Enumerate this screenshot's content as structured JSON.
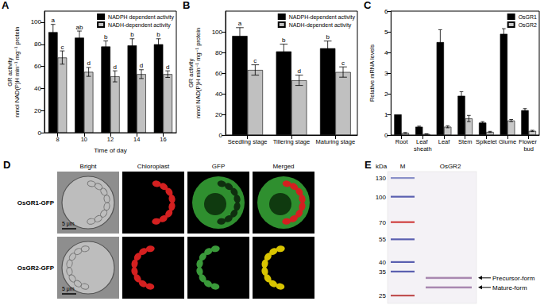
{
  "chart_data": [
    {
      "type": "bar",
      "title": "A",
      "xlabel": "Time of day",
      "ylabel": "GR activity\nnmol NAD(P)H min⁻¹ mg⁻¹ protein",
      "categories": [
        "8",
        "10",
        "12",
        "14",
        "16"
      ],
      "series": [
        {
          "name": "NADPH dependent activity",
          "color": "#000000",
          "values": [
            91,
            86,
            78,
            79,
            80
          ],
          "errors": [
            7,
            6,
            5,
            6,
            5
          ],
          "letters": [
            "a",
            "ab",
            "b",
            "b",
            "b"
          ]
        },
        {
          "name": "NADH-dependent activity",
          "color": "#c0c0c0",
          "values": [
            68,
            55,
            51,
            53,
            53
          ],
          "errors": [
            6,
            4,
            5,
            4,
            3
          ],
          "letters": [
            "c",
            "d",
            "d",
            "d",
            "d"
          ]
        }
      ],
      "ylim": [
        0,
        110
      ],
      "yticks": [
        0,
        20,
        40,
        60,
        80,
        100
      ],
      "grid": false,
      "legend": "upper right"
    },
    {
      "type": "bar",
      "title": "B",
      "ylabel": "GR activity\nnmol NAD(P)H min⁻¹ mg⁻¹ protein",
      "categories": [
        "Seedling stage",
        "Tillering stage",
        "Maturing stage"
      ],
      "series": [
        {
          "name": "NADPH-dependent activity",
          "color": "#000000",
          "values": [
            96,
            81,
            84
          ],
          "errors": [
            8,
            7,
            7
          ],
          "letters": [
            "a",
            "b",
            "b"
          ]
        },
        {
          "name": "NADH-dependent activity",
          "color": "#c0c0c0",
          "values": [
            63,
            53,
            61
          ],
          "errors": [
            5,
            5,
            5
          ],
          "letters": [
            "c",
            "d",
            "c"
          ]
        }
      ],
      "ylim": [
        0,
        120
      ],
      "yticks": [
        0,
        20,
        40,
        60,
        80,
        100
      ],
      "grid": false,
      "legend": "upper right"
    },
    {
      "type": "bar",
      "title": "C",
      "ylabel": "Relative mRNA levels",
      "categories": [
        "Root",
        "Leaf sheath",
        "Leaf",
        "Stem",
        "Spikelet",
        "Glume",
        "Flower bud"
      ],
      "series": [
        {
          "name": "OsGR1",
          "color": "#000000",
          "values": [
            1.0,
            0.4,
            4.5,
            1.9,
            0.6,
            4.9,
            1.2
          ],
          "errors": [
            0,
            0.03,
            0.6,
            0.2,
            0.05,
            0.25,
            0.08
          ]
        },
        {
          "name": "OsGR2",
          "color": "#c8c8c8",
          "values": [
            0.1,
            0.05,
            0.4,
            0.8,
            0.15,
            0.7,
            0.2
          ],
          "errors": [
            0.02,
            0.01,
            0.05,
            0.15,
            0.03,
            0.05,
            0.03
          ]
        }
      ],
      "ylim": [
        0,
        6
      ],
      "yticks": [
        0,
        1,
        2,
        3,
        4,
        5,
        6
      ],
      "grid": false,
      "legend": "upper right"
    }
  ],
  "panels": {
    "D": {
      "title": "D",
      "columns": [
        "Bright",
        "Chloroplast",
        "GFP",
        "Merged"
      ],
      "rows": [
        "OsGR1-GFP",
        "OsGR2-GFP"
      ],
      "scale_bar": "5 μm"
    },
    "E": {
      "title": "E",
      "header": "kDa",
      "lanes": [
        "M",
        "OsGR2"
      ],
      "ladder": [
        130,
        100,
        70,
        55,
        40,
        35,
        25
      ],
      "bands": [
        {
          "label": "Precursor-form",
          "kda": 32
        },
        {
          "label": "Mature-form",
          "kda": 28
        }
      ]
    }
  }
}
